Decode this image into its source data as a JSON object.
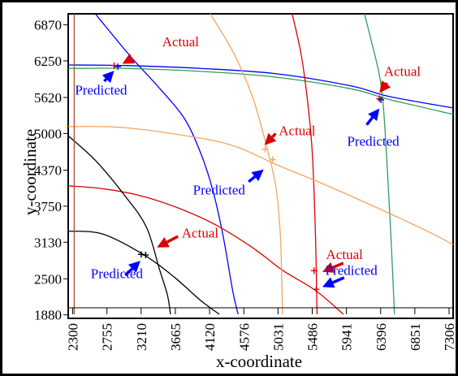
{
  "chart_data": {
    "type": "line",
    "xlabel": "x-coordinate",
    "ylabel": "y-coordinate",
    "xlim": [
      2240,
      7360
    ],
    "ylim": [
      1820,
      7060
    ],
    "x_ticks": [
      2300,
      2755,
      3210,
      3665,
      4120,
      4576,
      5031,
      5486,
      5941,
      6396,
      6851,
      7306
    ],
    "y_ticks": [
      1880,
      2500,
      3130,
      3750,
      4370,
      5000,
      5620,
      6250,
      6870
    ],
    "grid": false,
    "colors": {
      "black": "#000000",
      "blue": "#0000ff",
      "red": "#dd0000",
      "orange": "#f4a460",
      "green": "#2e9e5b",
      "brown": "#a0522d"
    },
    "series": [
      {
        "color": "blue",
        "points": [
          [
            2600,
            7060
          ],
          [
            2860,
            6650
          ],
          [
            3100,
            6280
          ],
          [
            3440,
            5800
          ],
          [
            3780,
            5270
          ],
          [
            4000,
            4670
          ],
          [
            4160,
            4040
          ],
          [
            4300,
            3240
          ],
          [
            4430,
            2280
          ],
          [
            4500,
            1890
          ]
        ]
      },
      {
        "color": "blue",
        "points": [
          [
            2240,
            6180
          ],
          [
            3000,
            6170
          ],
          [
            4000,
            6120
          ],
          [
            5000,
            6030
          ],
          [
            6000,
            5820
          ],
          [
            6500,
            5640
          ],
          [
            7360,
            5440
          ]
        ]
      },
      {
        "color": "green",
        "points": [
          [
            2240,
            6120
          ],
          [
            3000,
            6120
          ],
          [
            4000,
            6070
          ],
          [
            5000,
            5970
          ],
          [
            6000,
            5770
          ],
          [
            6500,
            5590
          ],
          [
            7360,
            5330
          ]
        ]
      },
      {
        "color": "green",
        "points": [
          [
            6180,
            7060
          ],
          [
            6290,
            6500
          ],
          [
            6380,
            6000
          ],
          [
            6430,
            5500
          ],
          [
            6480,
            4500
          ],
          [
            6530,
            3300
          ],
          [
            6580,
            1890
          ]
        ]
      },
      {
        "color": "red",
        "points": [
          [
            5220,
            7060
          ],
          [
            5340,
            6350
          ],
          [
            5420,
            5600
          ],
          [
            5480,
            4800
          ],
          [
            5510,
            4000
          ],
          [
            5530,
            3200
          ],
          [
            5540,
            2600
          ],
          [
            5550,
            1890
          ]
        ]
      },
      {
        "color": "red",
        "points": [
          [
            2240,
            4100
          ],
          [
            2700,
            4050
          ],
          [
            3200,
            3930
          ],
          [
            3700,
            3720
          ],
          [
            4200,
            3430
          ],
          [
            4700,
            3030
          ],
          [
            5100,
            2640
          ],
          [
            5530,
            2300
          ],
          [
            5900,
            1890
          ]
        ]
      },
      {
        "color": "orange",
        "points": [
          [
            4130,
            7060
          ],
          [
            4450,
            6360
          ],
          [
            4700,
            5600
          ],
          [
            4880,
            4770
          ],
          [
            5000,
            4100
          ],
          [
            5060,
            3300
          ],
          [
            5080,
            2500
          ],
          [
            5090,
            1890
          ]
        ]
      },
      {
        "color": "orange",
        "points": [
          [
            2240,
            5120
          ],
          [
            3000,
            5100
          ],
          [
            4000,
            4920
          ],
          [
            4500,
            4760
          ],
          [
            5000,
            4470
          ],
          [
            5600,
            4150
          ],
          [
            6300,
            3750
          ],
          [
            7000,
            3330
          ],
          [
            7360,
            3090
          ]
        ]
      },
      {
        "color": "black",
        "points": [
          [
            2240,
            4960
          ],
          [
            2600,
            4540
          ],
          [
            3000,
            3920
          ],
          [
            3280,
            3390
          ],
          [
            3450,
            2680
          ],
          [
            3560,
            2220
          ],
          [
            3600,
            1890
          ]
        ]
      },
      {
        "color": "black",
        "points": [
          [
            2240,
            3320
          ],
          [
            2700,
            3270
          ],
          [
            3250,
            2910
          ],
          [
            3650,
            2530
          ],
          [
            4000,
            2130
          ],
          [
            4250,
            1890
          ]
        ]
      },
      {
        "color": "brown",
        "points": [
          [
            2320,
            7060
          ],
          [
            2320,
            1890
          ]
        ]
      }
    ],
    "markers": [
      {
        "kind": "actual",
        "color": "red",
        "x": 2850,
        "y": 6170
      },
      {
        "kind": "predicted",
        "color": "blue",
        "x": 2900,
        "y": 6150
      },
      {
        "kind": "actual",
        "color": "red",
        "x": 6380,
        "y": 5600
      },
      {
        "kind": "predicted",
        "color": "blue",
        "x": 6400,
        "y": 5580
      },
      {
        "kind": "actual",
        "color": "orange",
        "x": 4860,
        "y": 4730
      },
      {
        "kind": "predicted",
        "color": "orange",
        "x": 4960,
        "y": 4550
      },
      {
        "kind": "actual",
        "color": "black",
        "x": 3210,
        "y": 2920
      },
      {
        "kind": "predicted",
        "color": "black",
        "x": 3270,
        "y": 2910
      },
      {
        "kind": "actual",
        "color": "red",
        "x": 5510,
        "y": 2640
      },
      {
        "kind": "predicted",
        "color": "red",
        "x": 5540,
        "y": 2320
      }
    ],
    "annotations": [
      {
        "text": "Actual",
        "color": "red",
        "tx": 3490,
        "ty": 6500,
        "ax": 3090,
        "ay": 6290,
        "hx": 2960,
        "hy": 6200
      },
      {
        "text": "Predicted",
        "color": "blue",
        "tx": 2330,
        "ty": 5670,
        "ax": 2720,
        "ay": 5900,
        "hx": 2850,
        "hy": 6080
      },
      {
        "text": "Actual",
        "color": "red",
        "tx": 6440,
        "ty": 5990,
        "ax": 6480,
        "ay": 5870,
        "hx": 6380,
        "hy": 5700
      },
      {
        "text": "Predicted",
        "color": "blue",
        "tx": 5950,
        "ty": 4790,
        "ax": 6210,
        "ay": 5150,
        "hx": 6380,
        "hy": 5430
      },
      {
        "text": "Actual",
        "color": "red",
        "tx": 5040,
        "ty": 4970,
        "ax": 5000,
        "ay": 5000,
        "hx": 4850,
        "hy": 4800
      },
      {
        "text": "Predicted",
        "color": "blue",
        "tx": 3900,
        "ty": 3950,
        "ax": 4640,
        "ay": 4170,
        "hx": 4840,
        "hy": 4380
      },
      {
        "text": "Actual",
        "color": "red",
        "tx": 3750,
        "ty": 3210,
        "ax": 3700,
        "ay": 3230,
        "hx": 3420,
        "hy": 3040
      },
      {
        "text": "Predicted",
        "color": "blue",
        "tx": 2540,
        "ty": 2510,
        "ax": 3000,
        "ay": 2560,
        "hx": 3200,
        "hy": 2810
      },
      {
        "text": "Actual",
        "color": "red",
        "tx": 5670,
        "ty": 2840,
        "ax": 5900,
        "ay": 2770,
        "hx": 5620,
        "hy": 2620
      },
      {
        "text": "Predicted",
        "color": "blue",
        "tx": 5660,
        "ty": 2570,
        "ax": 5910,
        "ay": 2520,
        "hx": 5620,
        "hy": 2360
      }
    ]
  }
}
